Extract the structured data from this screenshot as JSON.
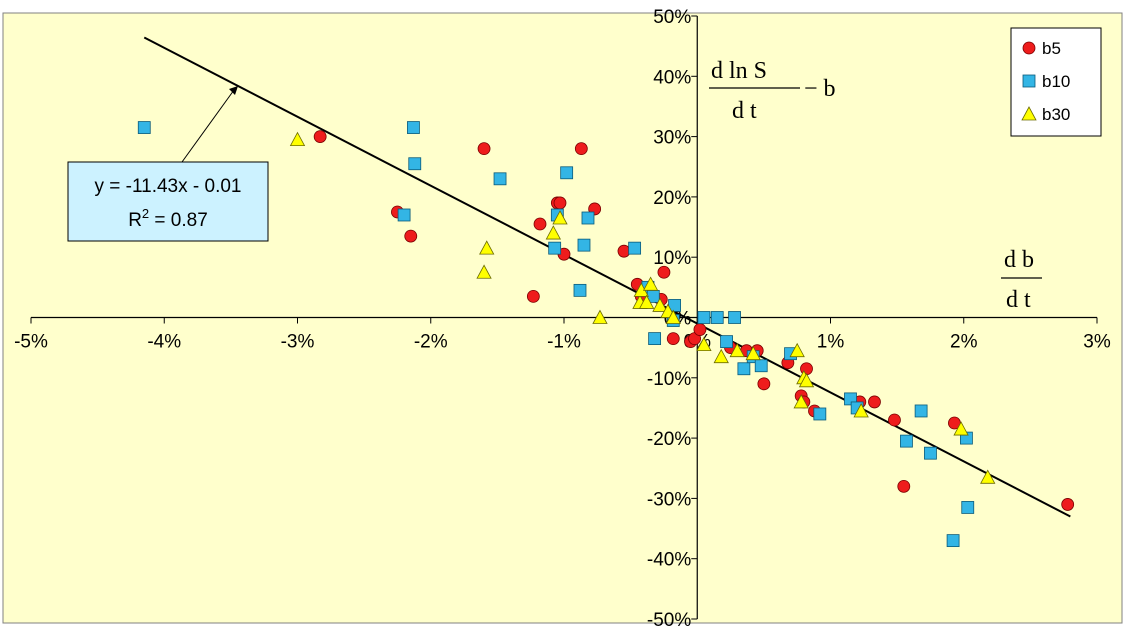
{
  "chart_data": {
    "type": "scatter",
    "x_axis": {
      "range": [
        -0.05,
        0.03
      ],
      "ticks": [
        -0.05,
        -0.04,
        -0.03,
        -0.02,
        -0.01,
        0,
        0.01,
        0.02,
        0.03
      ],
      "tick_labels": [
        "-5%",
        "-4%",
        "-3%",
        "-2%",
        "-1%",
        "0%",
        "1%",
        "2%",
        "3%"
      ]
    },
    "y_axis": {
      "range": [
        -0.5,
        0.5
      ],
      "ticks": [
        0.5,
        0.4,
        0.3,
        0.2,
        0.1,
        0,
        -0.1,
        -0.2,
        -0.3,
        -0.4,
        -0.5
      ],
      "tick_labels": [
        "50%",
        "40%",
        "30%",
        "20%",
        "10%",
        "0%",
        "-10%",
        "-20%",
        "-30%",
        "-40%",
        "-50%"
      ]
    },
    "plot_background": "#ffffcc",
    "grid": false,
    "legend": {
      "placement": "top-right"
    },
    "axis_labels": {
      "y": {
        "frac_num": "d ln S",
        "frac_den": "d t",
        "suffix": "− b"
      },
      "x": {
        "frac_num": "d b",
        "frac_den": "d t"
      }
    },
    "trendline": {
      "slope": -11.43,
      "intercept": -0.01,
      "x_range": [
        -0.0415,
        0.028
      ],
      "equation_label": "y = -11.43x - 0.01",
      "r2_label": "R",
      "r2_sup": "2",
      "r2_value": " = 0.87"
    },
    "series": [
      {
        "name": "b5",
        "marker": "circle",
        "color": "#ee1c1c",
        "points": [
          [
            -0.0283,
            0.3
          ],
          [
            -0.0225,
            0.175
          ],
          [
            -0.0215,
            0.135
          ],
          [
            -0.016,
            0.28
          ],
          [
            -0.0123,
            0.035
          ],
          [
            -0.0118,
            0.155
          ],
          [
            -0.0105,
            0.19
          ],
          [
            -0.0103,
            0.19
          ],
          [
            -0.01,
            0.105
          ],
          [
            -0.0087,
            0.28
          ],
          [
            -0.0077,
            0.18
          ],
          [
            -0.0055,
            0.11
          ],
          [
            -0.0045,
            0.055
          ],
          [
            -0.0042,
            0.035
          ],
          [
            -0.0027,
            0.03
          ],
          [
            -0.0025,
            0.075
          ],
          [
            -0.0018,
            -0.035
          ],
          [
            -0.0005,
            -0.04
          ],
          [
            -0.0002,
            -0.035
          ],
          [
            0.0002,
            -0.02
          ],
          [
            0.0025,
            -0.05
          ],
          [
            0.0037,
            -0.055
          ],
          [
            0.0045,
            -0.055
          ],
          [
            0.005,
            -0.11
          ],
          [
            0.0068,
            -0.075
          ],
          [
            0.0078,
            -0.13
          ],
          [
            0.008,
            -0.14
          ],
          [
            0.0082,
            -0.085
          ],
          [
            0.0088,
            -0.155
          ],
          [
            0.0122,
            -0.14
          ],
          [
            0.0133,
            -0.14
          ],
          [
            0.0148,
            -0.17
          ],
          [
            0.0155,
            -0.28
          ],
          [
            0.0193,
            -0.175
          ],
          [
            0.0278,
            -0.31
          ]
        ]
      },
      {
        "name": "b10",
        "marker": "square",
        "color": "#33b5e5",
        "points": [
          [
            -0.0415,
            0.315
          ],
          [
            -0.022,
            0.17
          ],
          [
            -0.0213,
            0.315
          ],
          [
            -0.0212,
            0.255
          ],
          [
            -0.0148,
            0.23
          ],
          [
            -0.0107,
            0.115
          ],
          [
            -0.0105,
            0.17
          ],
          [
            -0.0098,
            0.24
          ],
          [
            -0.0088,
            0.045
          ],
          [
            -0.0085,
            0.12
          ],
          [
            -0.0082,
            0.165
          ],
          [
            -0.0047,
            0.115
          ],
          [
            -0.0037,
            0.05
          ],
          [
            -0.0033,
            0.035
          ],
          [
            -0.0032,
            -0.035
          ],
          [
            -0.0018,
            -0.005
          ],
          [
            -0.0017,
            0.02
          ],
          [
            0.0005,
            0.0
          ],
          [
            0.0015,
            0.0
          ],
          [
            0.0022,
            -0.04
          ],
          [
            0.0028,
            0.0
          ],
          [
            0.0035,
            -0.085
          ],
          [
            0.0042,
            -0.065
          ],
          [
            0.0048,
            -0.08
          ],
          [
            0.007,
            -0.06
          ],
          [
            0.0092,
            -0.16
          ],
          [
            0.0115,
            -0.135
          ],
          [
            0.012,
            -0.15
          ],
          [
            0.0157,
            -0.205
          ],
          [
            0.0168,
            -0.155
          ],
          [
            0.0175,
            -0.225
          ],
          [
            0.0192,
            -0.37
          ],
          [
            0.0202,
            -0.2
          ],
          [
            0.0203,
            -0.315
          ]
        ]
      },
      {
        "name": "b30",
        "marker": "triangle",
        "color": "#ffff00",
        "points": [
          [
            -0.03,
            0.295
          ],
          [
            -0.0158,
            0.115
          ],
          [
            -0.016,
            0.075
          ],
          [
            -0.0108,
            0.14
          ],
          [
            -0.0103,
            0.165
          ],
          [
            -0.0073,
            0.0
          ],
          [
            -0.0043,
            0.025
          ],
          [
            -0.0042,
            0.045
          ],
          [
            -0.0038,
            0.025
          ],
          [
            -0.0035,
            0.055
          ],
          [
            -0.0028,
            0.02
          ],
          [
            -0.0022,
            0.01
          ],
          [
            -0.0018,
            0.0
          ],
          [
            0.0005,
            -0.045
          ],
          [
            0.0018,
            -0.065
          ],
          [
            0.003,
            -0.055
          ],
          [
            0.0042,
            -0.06
          ],
          [
            0.0075,
            -0.055
          ],
          [
            0.0078,
            -0.14
          ],
          [
            0.008,
            -0.1
          ],
          [
            0.0082,
            -0.105
          ],
          [
            0.0123,
            -0.155
          ],
          [
            0.0198,
            -0.185
          ],
          [
            0.0218,
            -0.265
          ]
        ]
      }
    ]
  }
}
